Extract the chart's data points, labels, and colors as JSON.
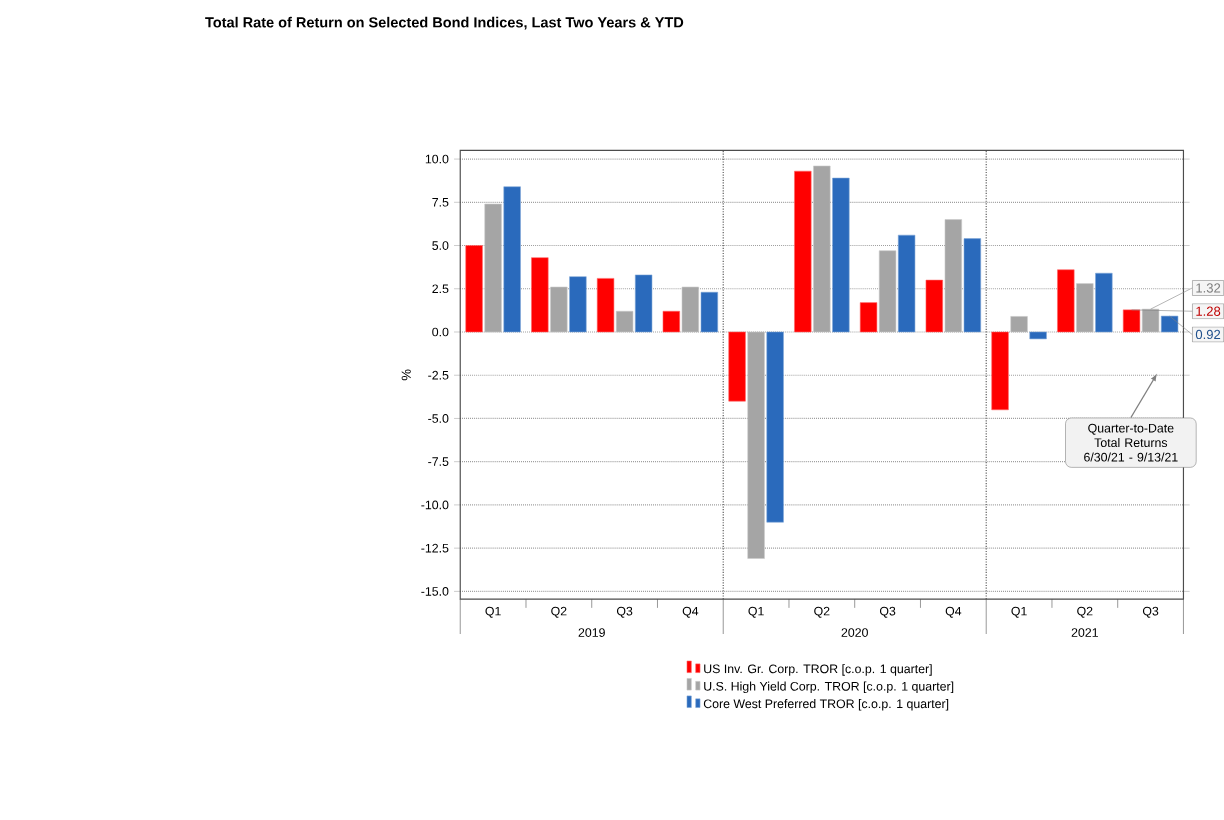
{
  "chart_data": {
    "type": "bar",
    "title": "Total Rate of Return on Selected Bond Indices, Last Two Years & YTD",
    "ylabel": "%",
    "categories": [
      "Q1",
      "Q2",
      "Q3",
      "Q4",
      "Q1",
      "Q2",
      "Q3",
      "Q4",
      "Q1",
      "Q2",
      "Q3"
    ],
    "series": [
      {
        "name": "US Inv. Gr. Corp. TROR [c.o.p. 1 quarter]",
        "color": "#ff0000",
        "values": [
          5.0,
          4.3,
          3.1,
          1.2,
          -4.0,
          9.3,
          1.7,
          3.0,
          -4.5,
          3.6,
          1.28
        ],
        "value_labels": [
          null,
          null,
          null,
          null,
          null,
          null,
          null,
          null,
          null,
          null,
          "1.28"
        ]
      },
      {
        "name": "U.S. High Yield Corp. TROR [c.o.p. 1 quarter]",
        "color": "#a5a5a5",
        "values": [
          7.4,
          2.6,
          1.2,
          2.6,
          -13.1,
          9.6,
          4.7,
          6.5,
          0.9,
          2.8,
          1.32
        ],
        "value_labels": [
          null,
          null,
          null,
          null,
          null,
          null,
          null,
          null,
          null,
          null,
          "1.32"
        ]
      },
      {
        "name": "Core West Preferred TROR [c.o.p. 1 quarter]",
        "color": "#2a6abc",
        "values": [
          8.4,
          3.2,
          3.3,
          2.3,
          -11.0,
          8.9,
          5.6,
          5.4,
          -0.4,
          3.4,
          0.92
        ],
        "value_labels": [
          null,
          null,
          null,
          null,
          null,
          null,
          null,
          null,
          null,
          null,
          "0.92"
        ]
      }
    ],
    "ylim": [
      -15.45,
      10.5
    ],
    "yticks": [
      {
        "value": -15,
        "label": "-15.0"
      },
      {
        "value": -12.5,
        "label": "-12.5"
      },
      {
        "value": -10,
        "label": "-10.0"
      },
      {
        "value": -7.5,
        "label": "-7.5"
      },
      {
        "value": -5,
        "label": "-5.0"
      },
      {
        "value": -2.5,
        "label": "-2.5"
      },
      {
        "value": 0,
        "label": "0.0"
      },
      {
        "value": 2.5,
        "label": "2.5"
      },
      {
        "value": 5,
        "label": "5.0"
      },
      {
        "value": 7.5,
        "label": "7.5"
      },
      {
        "value": 10,
        "label": "10.0"
      }
    ],
    "grid": true,
    "legend": "bottom",
    "annotations": [
      "Quarter-to-Date Total Returns 6/30/21 - 9/13/21",
      "2019",
      "2020",
      "2021"
    ]
  }
}
